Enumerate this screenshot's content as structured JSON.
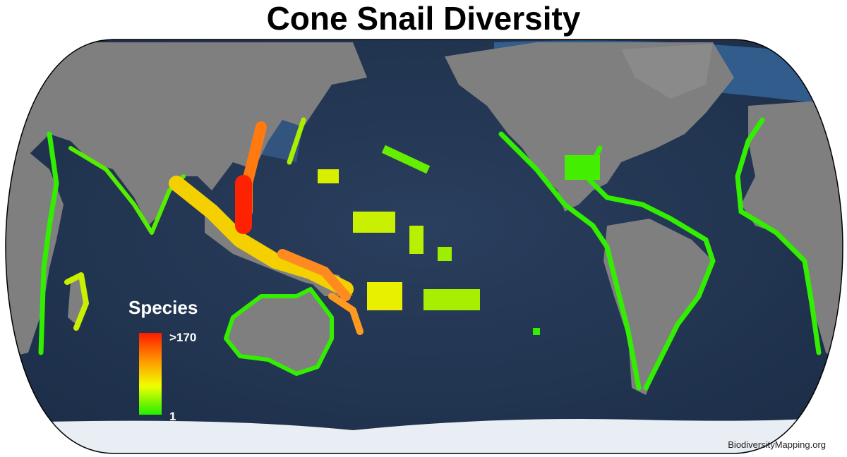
{
  "header": {
    "title": "Cone Snail Diversity"
  },
  "legend": {
    "title": "Species",
    "max_label": ">170",
    "min_label": "1"
  },
  "footer": {
    "credit": "BiodiversityMapping.org"
  }
}
